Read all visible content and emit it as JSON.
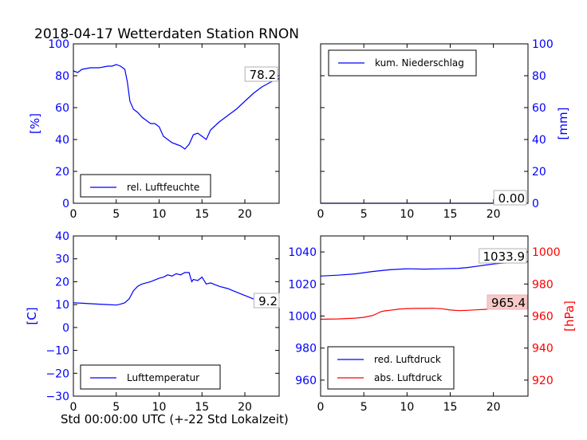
{
  "title": "2018-04-17 Wetterdaten Station RNON",
  "xlabel": "Std 00:00:00 UTC (+-22 Std Lokalzeit)",
  "colors": {
    "blue": "#0000ff",
    "red": "#ff0000",
    "pink_box": "#f7c9c9"
  },
  "panels": {
    "humidity": {
      "ylabel": "[%]",
      "legend": [
        "rel. Luftfeuchte"
      ],
      "last_value": "78.2"
    },
    "precip": {
      "ylabel": "[mm]",
      "legend": [
        "kum. Niederschlag"
      ],
      "last_value": "0.00"
    },
    "temp": {
      "ylabel": "[C]",
      "legend": [
        "Lufttemperatur"
      ],
      "last_value": "9.2"
    },
    "pressure": {
      "ylabel_right": "[hPa]",
      "legend": [
        "red. Luftdruck",
        "abs. Luftdruck"
      ],
      "last_value_red": "1033.9",
      "last_value_abs": "965.4"
    }
  },
  "chart_data": [
    {
      "type": "line",
      "title": "2018-04-17 Wetterdaten Station RNON",
      "xlabel": "",
      "ylabel": "[%]",
      "xlim": [
        0,
        24
      ],
      "ylim": [
        0,
        100
      ],
      "xticks": [
        0,
        5,
        10,
        15,
        20
      ],
      "yticks": [
        0,
        20,
        40,
        60,
        80,
        100
      ],
      "series": [
        {
          "name": "rel. Luftfeuchte",
          "color": "#0000ff",
          "x": [
            0,
            0.5,
            1,
            2,
            3,
            4,
            4.5,
            5,
            5.5,
            6,
            6.3,
            6.6,
            7,
            7.5,
            8,
            8.5,
            9,
            9.5,
            10,
            10.5,
            11,
            11.5,
            12,
            12.5,
            13,
            13.5,
            14,
            14.5,
            15,
            15.5,
            16,
            17,
            18,
            19,
            20,
            21,
            22,
            23,
            24
          ],
          "y": [
            83,
            82,
            84,
            85,
            85,
            86,
            86,
            87,
            86,
            84,
            76,
            64,
            59,
            57,
            54,
            52,
            50,
            50,
            48,
            42,
            40,
            38,
            37,
            36,
            34,
            37,
            43,
            44,
            42,
            40,
            46,
            51,
            55,
            59,
            64,
            69,
            73,
            76,
            78.2
          ]
        }
      ]
    },
    {
      "type": "line",
      "ylabel": "[mm]",
      "xlim": [
        0,
        24
      ],
      "ylim": [
        0,
        100
      ],
      "xticks": [
        0,
        5,
        10,
        15,
        20
      ],
      "yticks": [
        0,
        20,
        40,
        60,
        80,
        100
      ],
      "yaxis_side": "right",
      "series": [
        {
          "name": "kum. Niederschlag",
          "color": "#0000ff",
          "x": [
            0,
            24
          ],
          "y": [
            0,
            0
          ]
        }
      ]
    },
    {
      "type": "line",
      "ylabel": "[C]",
      "xlim": [
        0,
        24
      ],
      "ylim": [
        -30,
        40
      ],
      "xticks": [
        0,
        5,
        10,
        15,
        20
      ],
      "yticks": [
        -30,
        -20,
        -10,
        0,
        10,
        20,
        30,
        40
      ],
      "series": [
        {
          "name": "Lufttemperatur",
          "color": "#0000ff",
          "x": [
            0,
            1,
            2,
            3,
            4,
            5,
            5.5,
            6,
            6.5,
            7,
            7.5,
            8,
            9,
            10,
            10.5,
            11,
            11.5,
            12,
            12.5,
            13,
            13.5,
            13.8,
            14,
            14.5,
            15,
            15.5,
            16,
            17,
            18,
            19,
            20,
            21,
            22,
            23,
            24
          ],
          "y": [
            10.8,
            10.6,
            10.4,
            10.2,
            10.0,
            9.8,
            10.2,
            10.8,
            12.5,
            16,
            18,
            19,
            20,
            21.5,
            22,
            23,
            22.5,
            23.5,
            23,
            24,
            24,
            20,
            21,
            20.5,
            22,
            19,
            19.5,
            18,
            17,
            15.5,
            14,
            12.5,
            11.5,
            10.3,
            9.2
          ]
        }
      ]
    },
    {
      "type": "line",
      "xlim": [
        0,
        24
      ],
      "xticks": [
        0,
        5,
        10,
        15,
        20
      ],
      "ylim_left": [
        950,
        1050
      ],
      "yticks_left": [
        960,
        980,
        1000,
        1020,
        1040
      ],
      "ylim_right": [
        910,
        1010
      ],
      "yticks_right": [
        920,
        940,
        960,
        980,
        1000
      ],
      "ylabel_right": "[hPa]",
      "series": [
        {
          "name": "red. Luftdruck",
          "color": "#0000ff",
          "axis": "left",
          "x": [
            0,
            2,
            4,
            6,
            8,
            10,
            12,
            14,
            16,
            17,
            18,
            19,
            20,
            21,
            22,
            23,
            24
          ],
          "y": [
            1025,
            1025.5,
            1026.3,
            1027.8,
            1028.9,
            1029.5,
            1029.3,
            1029.5,
            1029.8,
            1030.3,
            1031.0,
            1031.8,
            1032.5,
            1033.0,
            1033.3,
            1033.6,
            1033.9
          ]
        },
        {
          "name": "abs. Luftdruck",
          "color": "#ff0000",
          "axis": "right",
          "x": [
            0,
            2,
            4,
            5,
            6,
            6.5,
            7,
            7.5,
            8,
            9,
            10,
            11,
            12,
            13,
            14,
            15,
            16,
            17,
            18,
            19,
            20,
            21,
            22,
            23,
            24
          ],
          "y": [
            958,
            958.2,
            958.7,
            959.2,
            960.3,
            961.5,
            962.8,
            963.3,
            963.6,
            964.3,
            964.7,
            964.8,
            964.8,
            964.9,
            964.6,
            963.8,
            963.4,
            963.6,
            963.9,
            964.2,
            964.5,
            964.9,
            965.1,
            965.3,
            965.4
          ]
        }
      ]
    }
  ]
}
